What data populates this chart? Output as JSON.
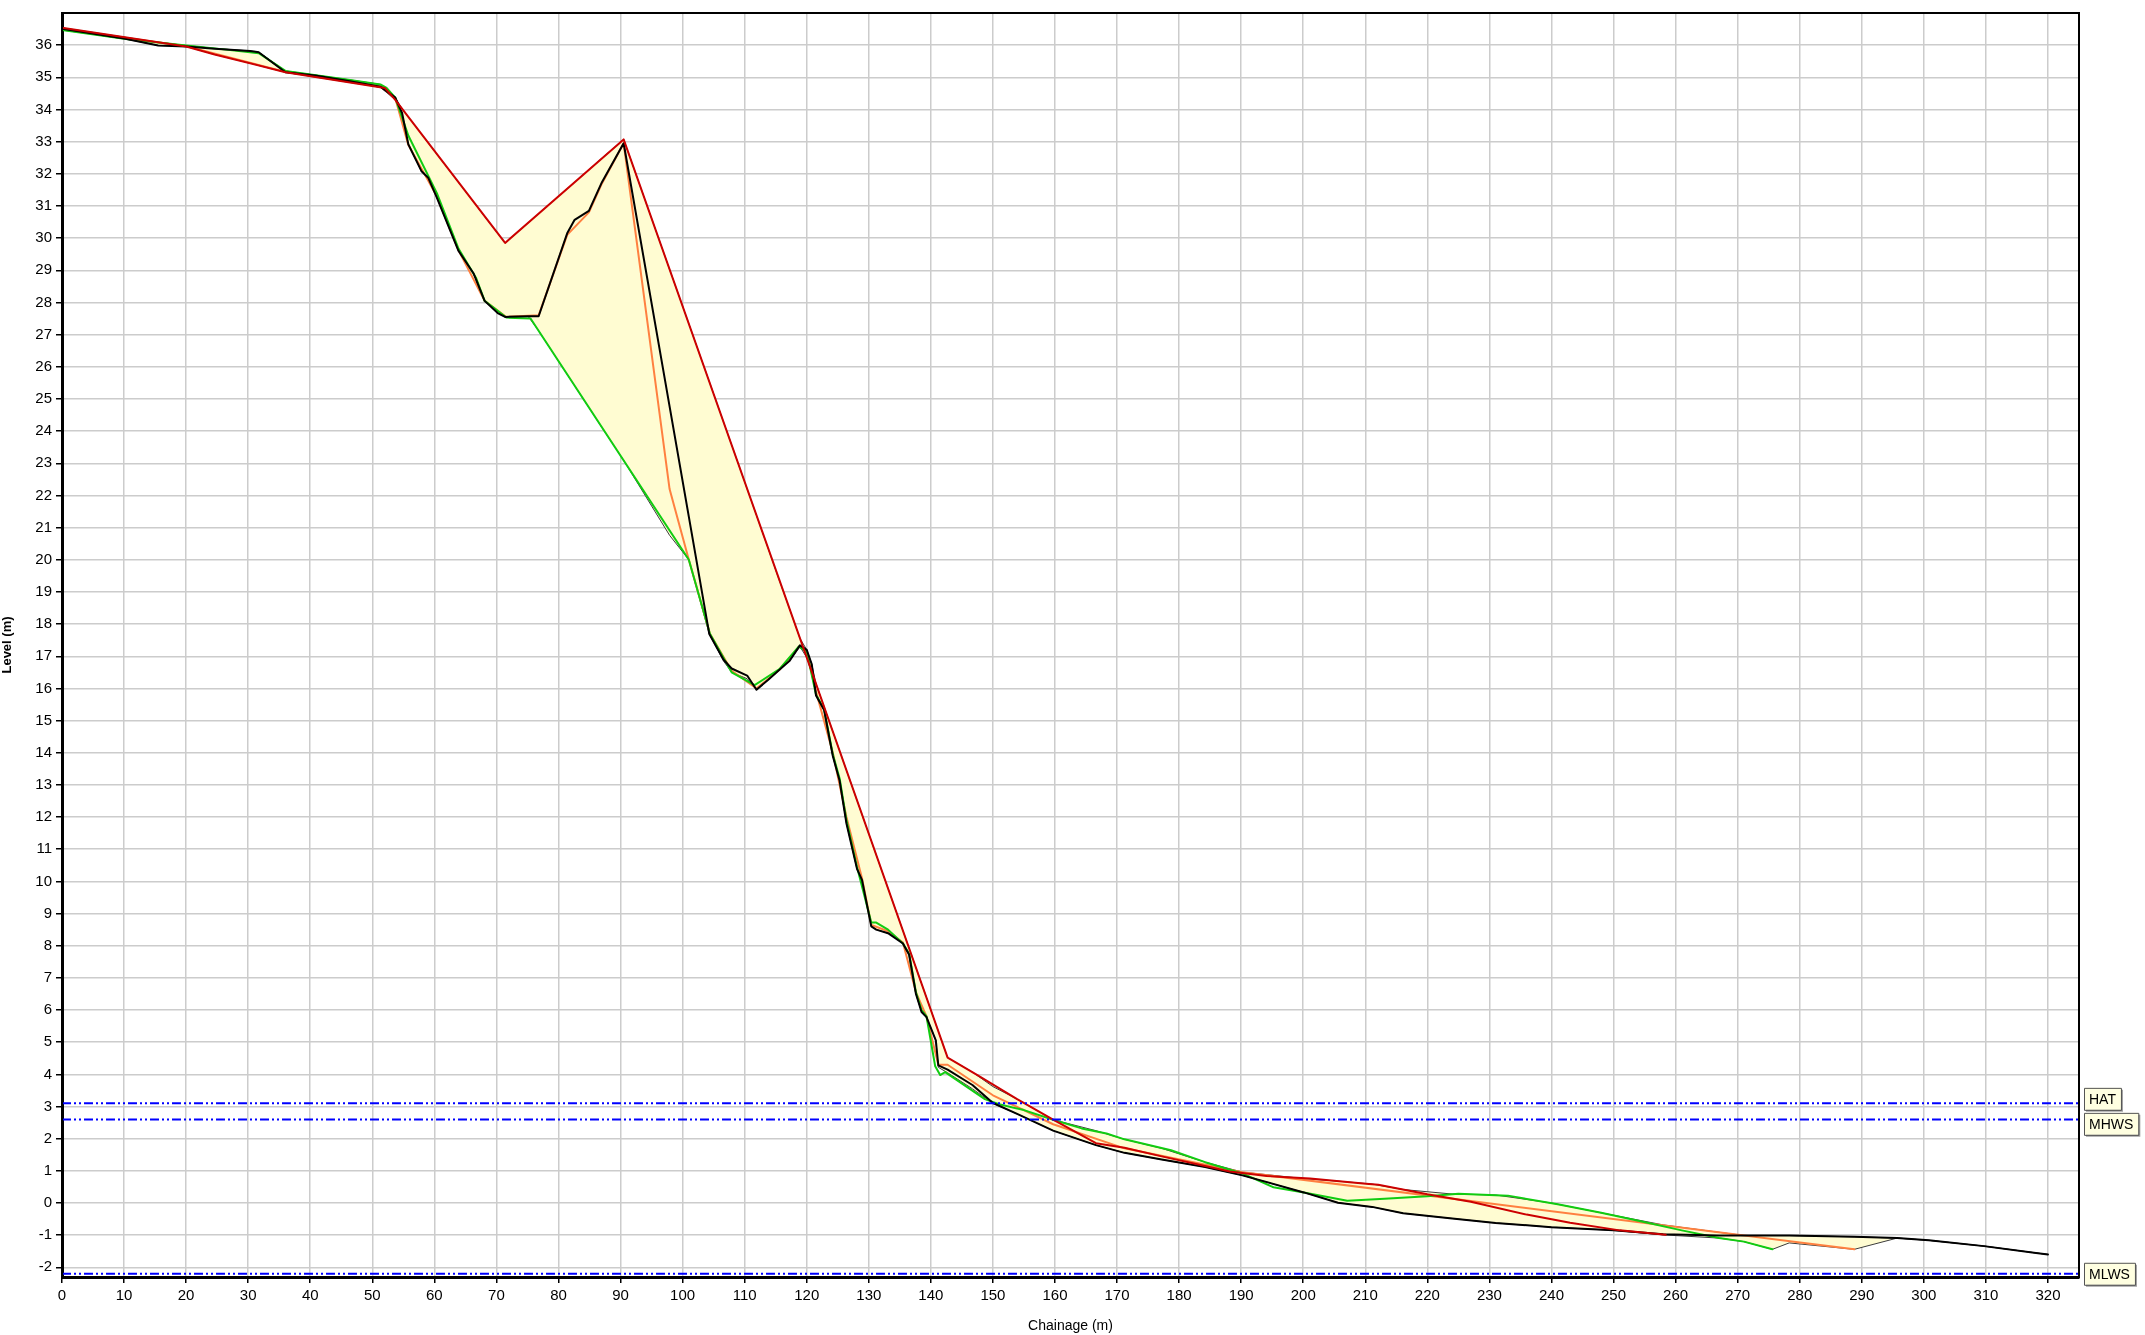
{
  "chart_data": {
    "type": "line",
    "xlabel": "Chainage (m)",
    "ylabel": "Level (m)",
    "xlim": [
      0,
      325
    ],
    "ylim": [
      -2.3,
      37
    ],
    "xticks": [
      0,
      10,
      20,
      30,
      40,
      50,
      60,
      70,
      80,
      90,
      100,
      110,
      120,
      130,
      140,
      150,
      160,
      170,
      180,
      190,
      200,
      210,
      220,
      230,
      240,
      250,
      260,
      270,
      280,
      290,
      300,
      310,
      320
    ],
    "yticks": [
      -2,
      -1,
      0,
      1,
      2,
      3,
      4,
      5,
      6,
      7,
      8,
      9,
      10,
      11,
      12,
      13,
      14,
      15,
      16,
      17,
      18,
      19,
      20,
      21,
      22,
      23,
      24,
      25,
      26,
      27,
      28,
      29,
      30,
      31,
      32,
      33,
      34,
      35,
      36
    ],
    "grid": true,
    "series": [
      {
        "color": "#cc0000",
        "x": [
          0,
          20,
          24.6,
          36,
          52,
          53.7,
          71.4,
          90.5,
          119.2,
          142.7,
          147.5,
          153.9,
          159.7,
          166.6,
          171.2,
          177.2,
          188.2,
          194.1,
          201.1,
          210.1,
          212.1,
          220,
          227,
          236,
          243,
          251,
          258.4
        ],
        "values": [
          36.54,
          35.96,
          35.71,
          35.16,
          34.67,
          34.3,
          29.85,
          33.07,
          17.4,
          4.52,
          3.98,
          3.23,
          2.59,
          1.86,
          1.72,
          1.45,
          0.98,
          0.84,
          0.76,
          0.6,
          0.57,
          0.27,
          0.04,
          -0.36,
          -0.61,
          -0.85,
          -0.99
        ]
      },
      {
        "color": "#000000",
        "x": [
          0,
          10,
          15.5,
          20,
          24.6,
          30.3,
          31.7,
          36,
          40.8,
          46.4,
          51.3,
          53.7,
          54.8,
          55.8,
          57.9,
          59,
          60.4,
          63.9,
          66.3,
          68.1,
          70.2,
          71.4,
          75.1,
          76.8,
          81.4,
          82.6,
          84.9,
          87,
          90.5,
          97.9,
          101,
          104.3,
          106.6,
          107.9,
          110.4,
          111.9,
          113.8,
          115.6,
          117.2,
          118.9,
          120,
          120.8,
          121.5,
          122.8,
          124.2,
          125.3,
          126.4,
          128.1,
          128.9,
          130.4,
          131.2,
          133.1,
          135.5,
          136.5,
          137.6,
          138.5,
          139.3,
          140.8,
          141.2,
          142.7,
          146.7,
          150,
          153.9,
          159.7,
          166.6,
          171.2,
          177.2,
          184.2,
          190.2,
          200.1,
          205.6,
          211.1,
          216.1,
          224,
          231,
          240,
          250,
          258,
          267,
          271,
          275.6,
          278.3,
          288.8,
          295.7,
          300.8,
          309.7,
          320
        ],
        "values": [
          36.51,
          36.21,
          35.99,
          35.96,
          35.89,
          35.82,
          35.78,
          35.16,
          35.06,
          34.88,
          34.71,
          34.37,
          33.89,
          32.92,
          32.09,
          31.88,
          31.26,
          29.6,
          28.91,
          28.05,
          27.67,
          27.55,
          27.57,
          27.57,
          30.15,
          30.57,
          30.85,
          31.74,
          32.95,
          24.77,
          21.34,
          17.69,
          16.89,
          16.62,
          16.4,
          15.96,
          16.27,
          16.58,
          16.85,
          17.34,
          17.2,
          16.76,
          15.78,
          15.33,
          13.9,
          13.13,
          11.8,
          10.39,
          10.05,
          8.6,
          8.5,
          8.39,
          8.07,
          7.72,
          6.5,
          5.94,
          5.78,
          5.06,
          4.28,
          4.15,
          3.67,
          3.11,
          2.77,
          2.25,
          1.8,
          1.56,
          1.35,
          1.12,
          0.86,
          0.33,
          0.01,
          -0.12,
          -0.32,
          -0.48,
          -0.62,
          -0.75,
          -0.85,
          -0.97,
          -1.01,
          -1.01,
          -1.01,
          -1.01,
          -1.05,
          -1.09,
          -1.16,
          -1.34,
          -1.6
        ],
        "upper": [
          36.54,
          36.25,
          36.09,
          35.99,
          35.9,
          35.82,
          35.78,
          35.2,
          35.07,
          34.92,
          34.78,
          34.37,
          34.02,
          33.77,
          33.24,
          32.96,
          32.61,
          31.73,
          31.13,
          30.67,
          30.15,
          29.85,
          30.47,
          30.76,
          31.54,
          31.74,
          32.13,
          32.49,
          33.07,
          29.03,
          27.34,
          25.54,
          24.28,
          23.57,
          22.2,
          21.38,
          20.34,
          19.35,
          18.49,
          17.56,
          17.2,
          16.76,
          16.14,
          15.43,
          14.66,
          14.06,
          13.45,
          12.52,
          12.08,
          11.26,
          10.82,
          9.78,
          8.47,
          7.92,
          7.32,
          6.82,
          6.39,
          5.56,
          5.34,
          4.52,
          4.07,
          3.62,
          3.23,
          2.59,
          2.25,
          1.98,
          1.7,
          1.27,
          0.96,
          0.76,
          0.68,
          0.59,
          0.42,
          0.28,
          0.25,
          0,
          -0.38,
          -0.68,
          -0.91,
          -1.01,
          -1.01,
          -1.01,
          -1.05,
          -1.09,
          -1.16,
          -1.34,
          -1.6
        ],
        "lower": [
          36.47,
          36.2,
          35.99,
          35.96,
          35.71,
          35.44,
          35.37,
          35.16,
          35.01,
          34.84,
          34.69,
          34.3,
          33.75,
          32.92,
          32.09,
          31.88,
          31.26,
          29.6,
          28.9,
          28.05,
          27.67,
          27.55,
          27.57,
          27.12,
          25.76,
          25.41,
          24.73,
          24.11,
          23.09,
          20.76,
          20,
          17.69,
          16.85,
          16.5,
          16.3,
          15.96,
          16.27,
          16.58,
          16.85,
          17.3,
          16.96,
          16.52,
          15.78,
          15.33,
          13.9,
          13.13,
          11.8,
          10.39,
          10.05,
          8.6,
          8.5,
          8.39,
          8.07,
          7.72,
          6.5,
          5.94,
          5.78,
          5.06,
          4.22,
          4.05,
          3.55,
          3.1,
          2.77,
          2.25,
          1.8,
          1.56,
          1.35,
          1.12,
          0.86,
          0.33,
          0.01,
          -0.12,
          -0.32,
          -0.48,
          -0.62,
          -0.75,
          -0.85,
          -0.99,
          -1.09,
          -1.2,
          -1.44,
          -1.24,
          -1.44,
          -1.09,
          -1.16,
          -1.34,
          -1.6
        ]
      },
      {
        "color": "#11cc11",
        "x": [
          0,
          10,
          20,
          24.6,
          30.3,
          31.7,
          36,
          46.4,
          51.3,
          52.3,
          53.7,
          55.8,
          60.4,
          63.9,
          66.7,
          68.1,
          70.2,
          71.6,
          75.5,
          101,
          104.4,
          107.9,
          111.6,
          115.6,
          118.7,
          120,
          121.5,
          122.8,
          124.2,
          125.3,
          126.4,
          128.1,
          130.4,
          131.2,
          133.1,
          135.5,
          136.5,
          137.6,
          138.5,
          139.3,
          140.7,
          141.5,
          142.3,
          148.7,
          151,
          155,
          159.7,
          164.3,
          168.3,
          171.2,
          178.7,
          184.2,
          190.2,
          195.2,
          200.1,
          207.1,
          213.1,
          220,
          225,
          233,
          241,
          248,
          254,
          261,
          267,
          271,
          275.6
        ],
        "values": [
          36.47,
          36.2,
          35.99,
          35.9,
          35.78,
          35.75,
          35.2,
          34.92,
          34.78,
          34.67,
          34.37,
          33.19,
          31.4,
          29.67,
          28.77,
          28.05,
          27.74,
          27.53,
          27.5,
          20,
          17.7,
          16.5,
          16.1,
          16.6,
          17.3,
          17.15,
          15.8,
          15.35,
          13.95,
          13.2,
          11.9,
          10.45,
          8.72,
          8.72,
          8.5,
          8.07,
          7.75,
          6.55,
          6,
          5.8,
          4.25,
          3.98,
          4.07,
          3.23,
          3.07,
          2.89,
          2.59,
          2.32,
          2.16,
          1.98,
          1.64,
          1.27,
          0.92,
          0.49,
          0.33,
          0.07,
          0.13,
          0.21,
          0.29,
          0.23,
          -0.04,
          -0.3,
          -0.55,
          -0.85,
          -1.09,
          -1.2,
          -1.44
        ]
      },
      {
        "color": "#ff8040",
        "x": [
          0,
          20,
          36,
          51.3,
          53.7,
          55.8,
          60.4,
          63.9,
          68.1,
          71.6,
          76.8,
          81.4,
          84.9,
          87,
          90.5,
          97.9,
          101,
          104.4,
          107.9,
          111.9,
          115.6,
          118.9,
          120,
          121.5,
          124.2,
          126.4,
          128.9,
          130.4,
          133.1,
          135.5,
          137.6,
          139.3,
          141.2,
          142.7,
          150,
          159.7,
          171.2,
          190.2,
          288.8
        ],
        "values": [
          36.5,
          35.97,
          35.17,
          34.72,
          34.35,
          32.9,
          31.3,
          29.62,
          28.05,
          27.55,
          27.6,
          30.1,
          30.8,
          31.7,
          32.95,
          22.2,
          20,
          17.7,
          16.55,
          16,
          16.58,
          17.32,
          17.15,
          15.9,
          14,
          12,
          10.1,
          8.65,
          8.45,
          8.1,
          6.55,
          5.8,
          4.3,
          4.3,
          3.35,
          2.45,
          1.7,
          0.96,
          -1.44
        ]
      }
    ],
    "ref_lines": [
      {
        "axis": "y",
        "value": 3.1,
        "label": "HAT",
        "color": "#0000ff",
        "line_style": "dashed"
      },
      {
        "axis": "y",
        "value": 2.6,
        "label": "MHWS",
        "color": "#0000ff",
        "line_style": "dashed"
      },
      {
        "axis": "y",
        "value": -2.2,
        "label": "MLWS",
        "color": "#0000ff",
        "line_style": "dashed"
      }
    ]
  }
}
